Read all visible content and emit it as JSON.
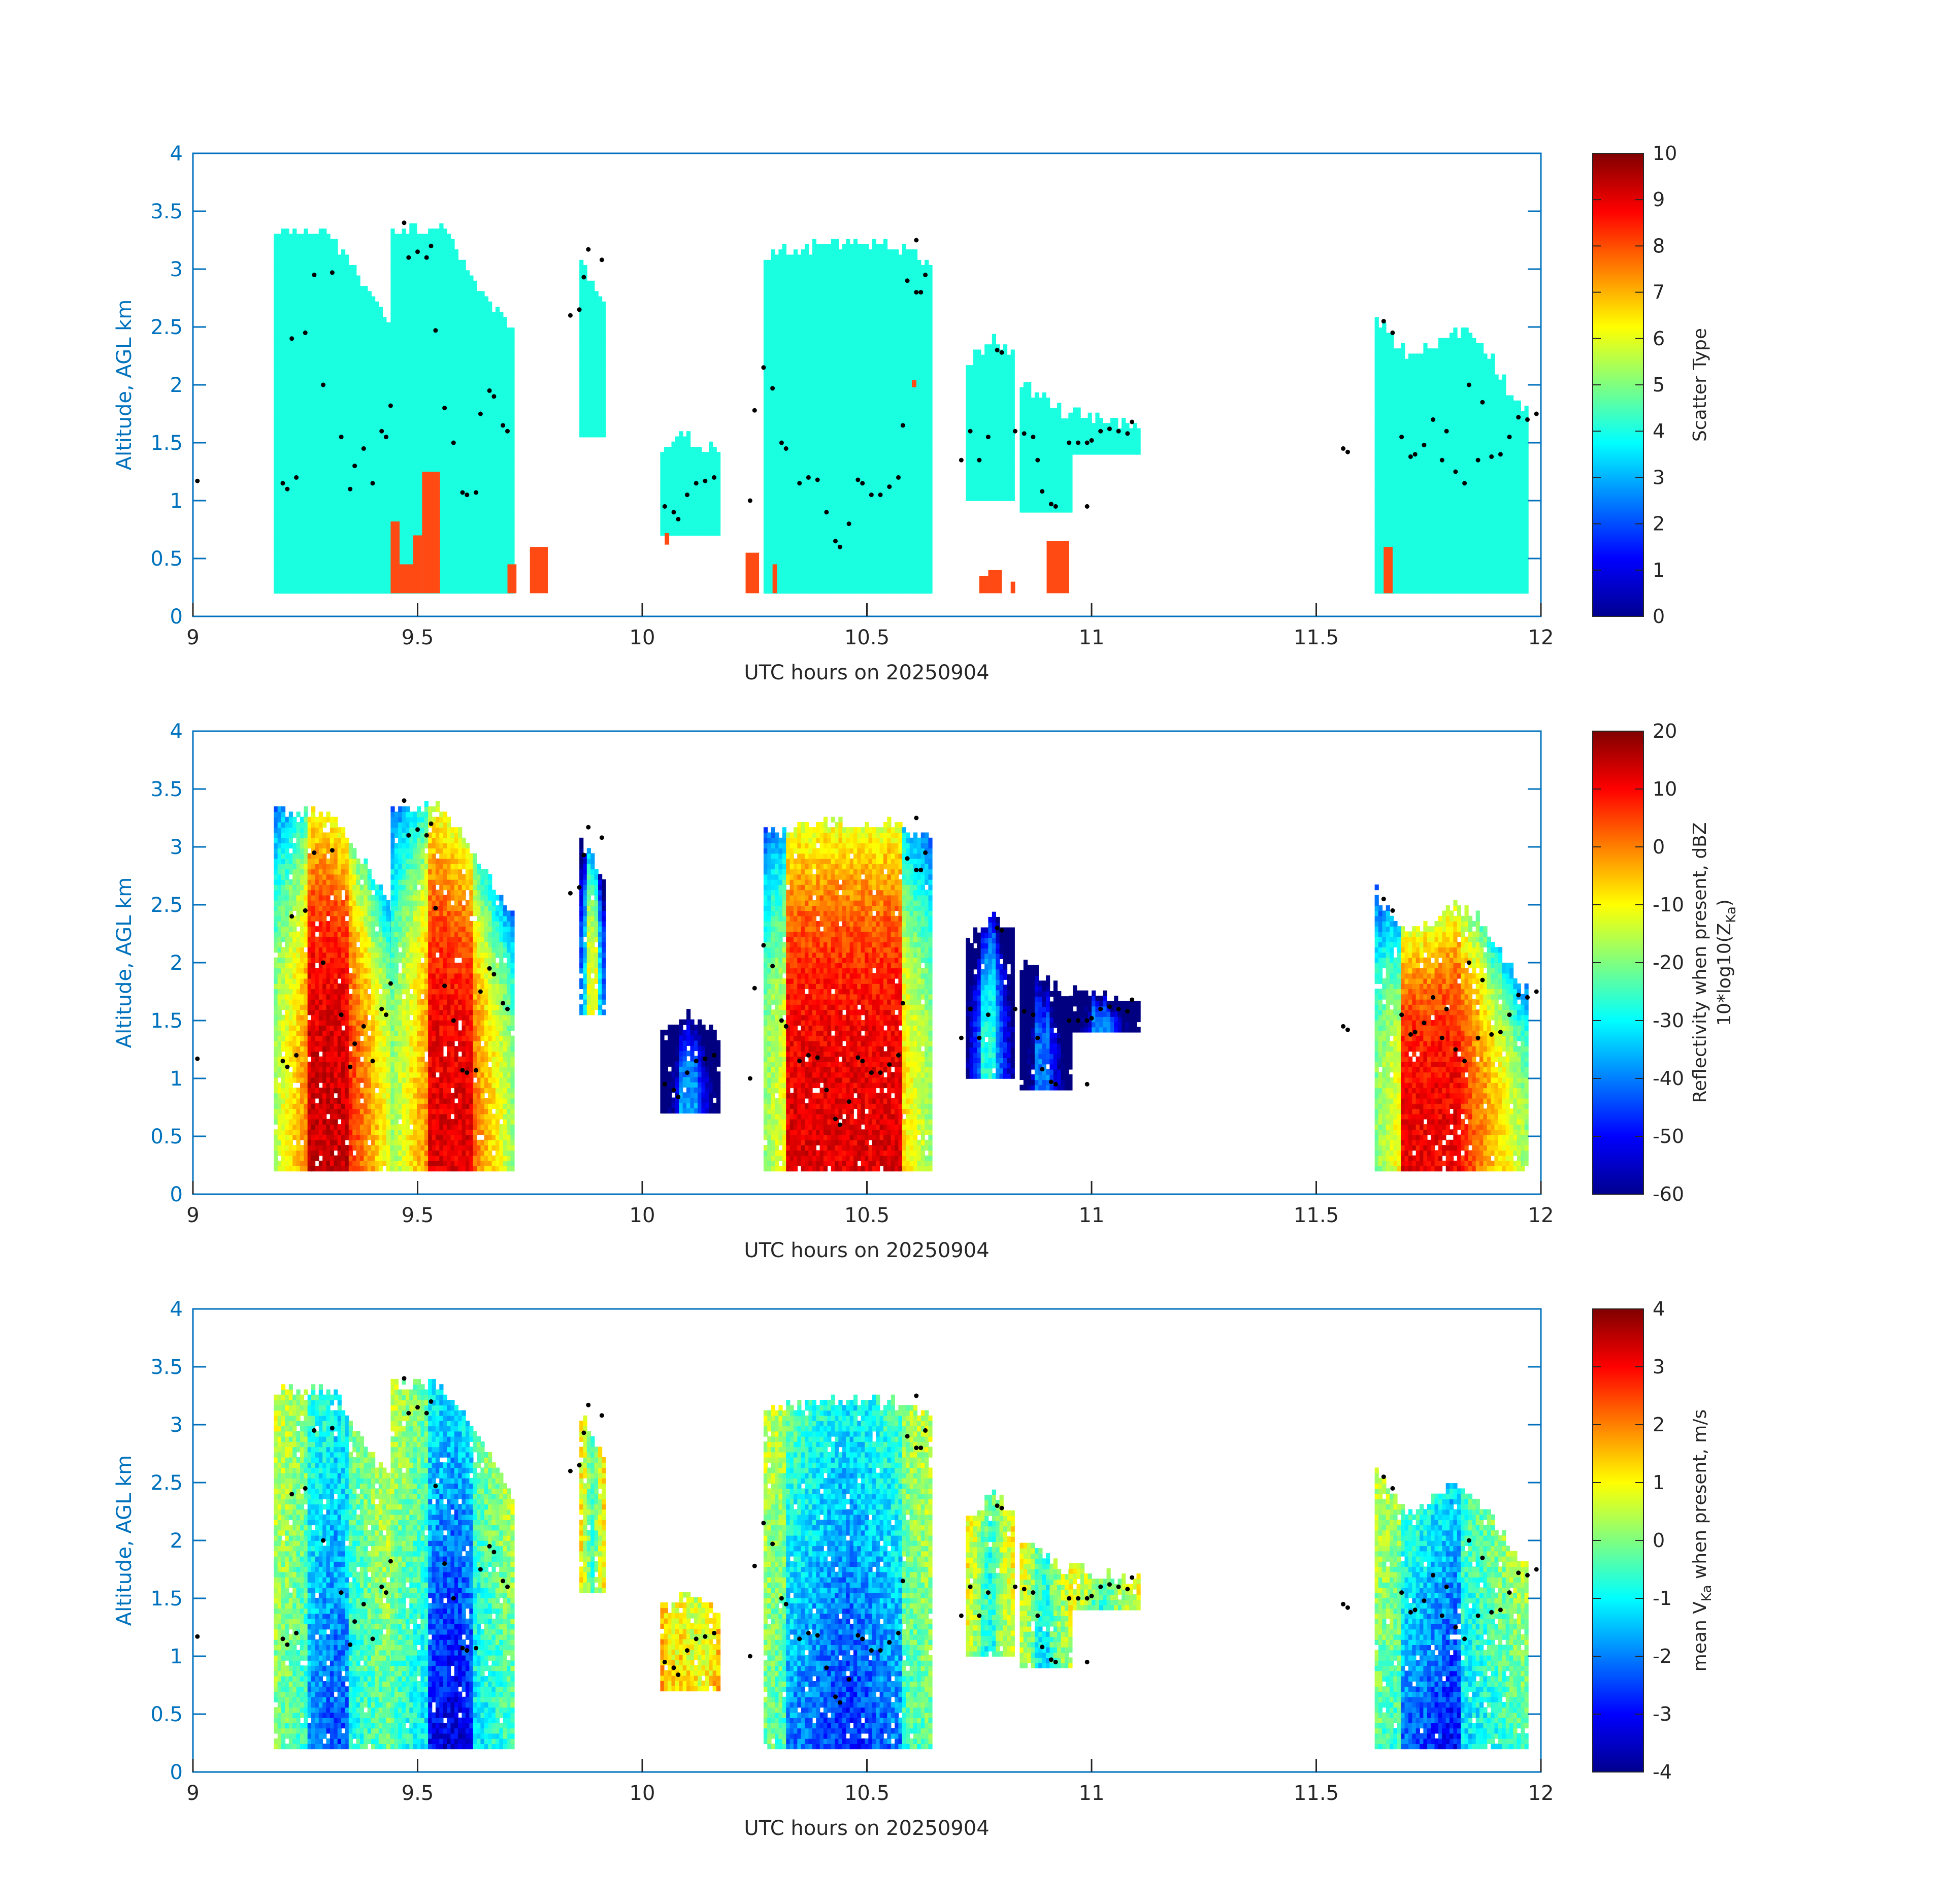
{
  "figure": {
    "panels": [
      {
        "id": "scatter-type",
        "colorbar_label": "Scatter Type",
        "colorbar_label_line2": "",
        "colorbar_ticks": [
          "0",
          "1",
          "2",
          "3",
          "4",
          "5",
          "6",
          "7",
          "8",
          "9",
          "10"
        ],
        "vmin": 0,
        "vmax": 10
      },
      {
        "id": "reflectivity",
        "colorbar_label": "Reflectivity when present, dBZ",
        "colorbar_label_line2": "10*log10(Z",
        "colorbar_label_line2_sub": "Ka",
        "colorbar_label_line2_end": ")",
        "colorbar_ticks": [
          "-60",
          "-50",
          "-40",
          "-30",
          "-20",
          "-10",
          "0",
          "10",
          "20"
        ],
        "vmin": -60,
        "vmax": 20
      },
      {
        "id": "velocity",
        "colorbar_label_pre": "mean V",
        "colorbar_label_sub": "Ka",
        "colorbar_label_post": " when present, m/s",
        "colorbar_ticks": [
          "-4",
          "-3",
          "-2",
          "-1",
          "0",
          "1",
          "2",
          "3",
          "4"
        ],
        "vmin": -4,
        "vmax": 4
      }
    ],
    "xlabel": "UTC hours on 20250904",
    "ylabel": "Altitude, AGL km",
    "xticks": [
      "9",
      "9.5",
      "10",
      "10.5",
      "11",
      "11.5",
      "12"
    ],
    "yticks": [
      "0",
      "0.5",
      "1",
      "1.5",
      "2",
      "2.5",
      "3",
      "3.5",
      "4"
    ],
    "axis_color": "#0072BD"
  },
  "chart_data": [
    {
      "type": "heatmap",
      "variable": "scatter type",
      "xlabel": "UTC hours on 20250904",
      "ylabel": "Altitude, AGL km",
      "xlim": [
        9,
        12
      ],
      "ylim": [
        0,
        4
      ],
      "colorbar": {
        "label": "Scatter Type",
        "range": [
          0,
          10
        ]
      },
      "regions": [
        {
          "x": [
            9.18,
            9.45
          ],
          "y": [
            0.2,
            3.4
          ],
          "value": 4
        },
        {
          "x": [
            9.44,
            9.71
          ],
          "y": [
            0.2,
            3.5
          ],
          "value": 4
        },
        {
          "x": [
            9.86,
            9.91
          ],
          "y": [
            1.5,
            3.3
          ],
          "value": 4
        },
        {
          "x": [
            10.04,
            10.17
          ],
          "y": [
            0.65,
            1.6
          ],
          "value": 4
        },
        {
          "x": [
            10.27,
            10.64
          ],
          "y": [
            0.2,
            3.3
          ],
          "value": 4
        },
        {
          "x": [
            10.72,
            10.82
          ],
          "y": [
            0.9,
            2.5
          ],
          "value": 4
        },
        {
          "x": [
            10.84,
            10.95
          ],
          "y": [
            0.9,
            2.1
          ],
          "value": 4
        },
        {
          "x": [
            10.94,
            11.1
          ],
          "y": [
            1.35,
            1.8
          ],
          "value": 4
        },
        {
          "x": [
            11.63,
            11.97
          ],
          "y": [
            0.2,
            2.7
          ],
          "value": 4
        },
        {
          "x": [
            9.44,
            9.55
          ],
          "y": [
            0.2,
            1.25
          ],
          "value": 8
        },
        {
          "x": [
            9.74,
            9.79
          ],
          "y": [
            0.2,
            0.6
          ],
          "value": 8
        },
        {
          "x": [
            10.23,
            10.27
          ],
          "y": [
            0.2,
            0.55
          ],
          "value": 8
        },
        {
          "x": [
            10.75,
            10.96
          ],
          "y": [
            0.2,
            0.65
          ],
          "value": 8
        },
        {
          "x": [
            11.65,
            11.67
          ],
          "y": [
            0.2,
            0.6
          ],
          "value": 8
        }
      ],
      "markers": "cloud-base (black dots)"
    },
    {
      "type": "heatmap",
      "variable": "reflectivity",
      "xlabel": "UTC hours on 20250904",
      "ylabel": "Altitude, AGL km",
      "xlim": [
        9,
        12
      ],
      "ylim": [
        0,
        4
      ],
      "colorbar": {
        "label": "Reflectivity when present, dBZ 10*log10(Z_Ka)",
        "range": [
          -60,
          20
        ]
      },
      "regions": [
        {
          "x": [
            9.18,
            9.45
          ],
          "y": [
            0.2,
            3.4
          ],
          "core_value": 12
        },
        {
          "x": [
            9.44,
            9.71
          ],
          "y": [
            0.2,
            3.4
          ],
          "core_value": 10
        },
        {
          "x": [
            9.86,
            9.91
          ],
          "y": [
            1.5,
            3.0
          ],
          "core_value": -15
        },
        {
          "x": [
            10.04,
            10.17
          ],
          "y": [
            0.65,
            1.6
          ],
          "core_value": -35
        },
        {
          "x": [
            10.27,
            10.64
          ],
          "y": [
            0.2,
            3.3
          ],
          "core_value": 12
        },
        {
          "x": [
            11.63,
            11.97
          ],
          "y": [
            0.2,
            2.7
          ],
          "core_value": 10
        }
      ]
    },
    {
      "type": "heatmap",
      "variable": "mean Doppler velocity",
      "xlabel": "UTC hours on 20250904",
      "ylabel": "Altitude, AGL km",
      "xlim": [
        9,
        12
      ],
      "ylim": [
        0,
        4
      ],
      "colorbar": {
        "label": "mean V_Ka when present, m/s",
        "range": [
          -4,
          4
        ]
      },
      "regions": [
        {
          "x": [
            9.18,
            9.45
          ],
          "y": [
            0.2,
            3.4
          ],
          "typical_value": -2
        },
        {
          "x": [
            9.44,
            9.71
          ],
          "y": [
            0.2,
            3.4
          ],
          "typical_value": -3
        },
        {
          "x": [
            10.04,
            10.17
          ],
          "y": [
            0.65,
            1.6
          ],
          "typical_value": 1
        },
        {
          "x": [
            10.27,
            10.64
          ],
          "y": [
            0.2,
            3.3
          ],
          "typical_value": -2
        },
        {
          "x": [
            11.63,
            11.97
          ],
          "y": [
            0.2,
            2.7
          ],
          "typical_value": -2
        }
      ]
    }
  ]
}
